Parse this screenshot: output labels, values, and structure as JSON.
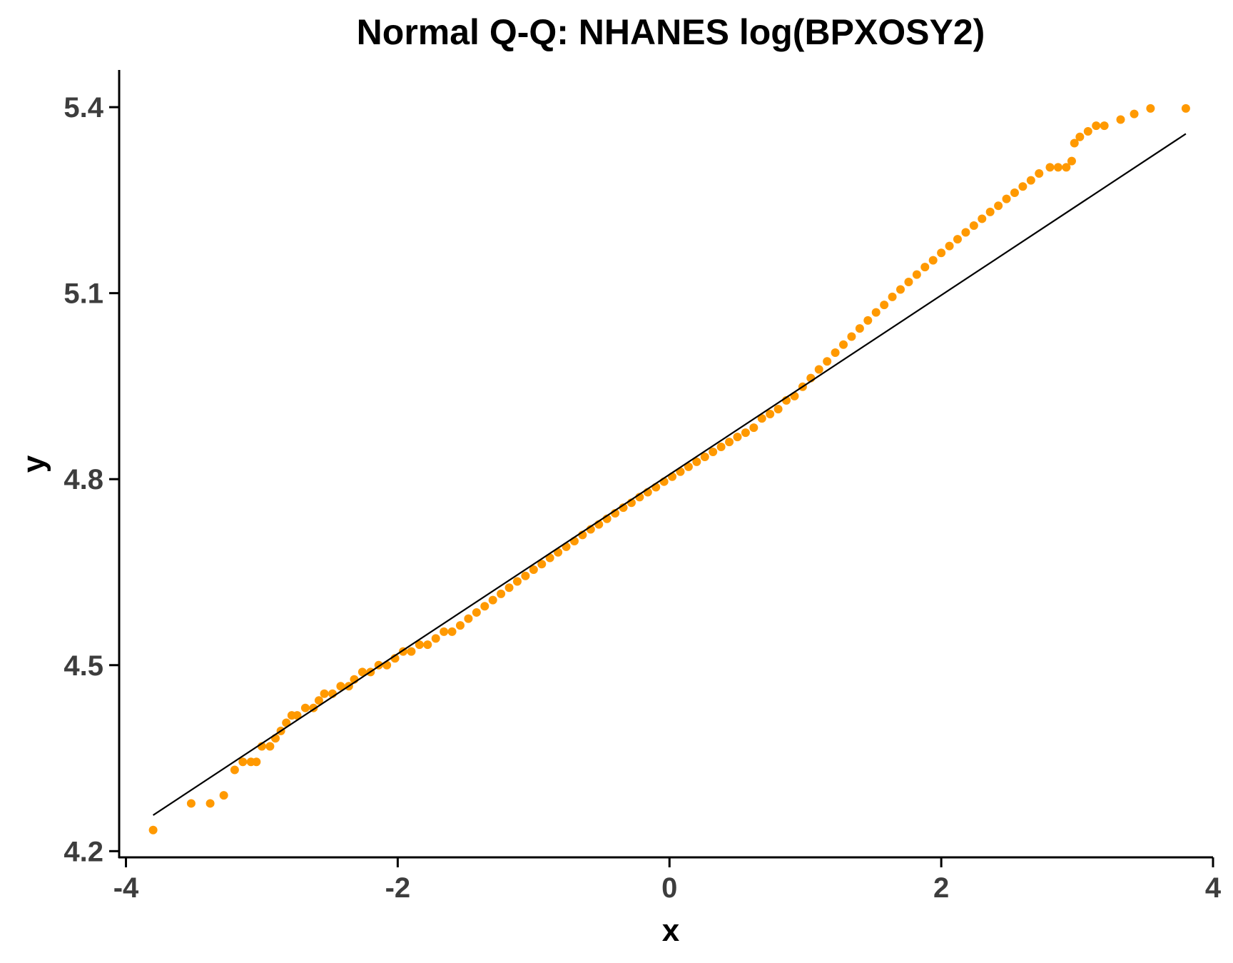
{
  "chart_data": {
    "type": "scatter",
    "title": "Normal Q-Q: NHANES log(BPXOSY2)",
    "xlabel": "x",
    "ylabel": "y",
    "xlim": [
      -4.05,
      4.0
    ],
    "ylim": [
      4.19,
      5.46
    ],
    "x_ticks": [
      -4,
      -2,
      0,
      2,
      4
    ],
    "x_tick_labels": [
      "-4",
      "-2",
      "0",
      "2",
      "4"
    ],
    "y_ticks": [
      4.2,
      4.5,
      4.8,
      5.1,
      5.4
    ],
    "y_tick_labels": [
      "4.2",
      "4.5",
      "4.8",
      "5.1",
      "5.4"
    ],
    "grid": false,
    "point_color": "#ff9900",
    "line_color": "#000000",
    "reference_line": {
      "x": [
        -3.8,
        3.8
      ],
      "y": [
        4.258,
        5.357
      ]
    },
    "series": [
      {
        "points": [
          [
            -3.8,
            4.234
          ],
          [
            -3.52,
            4.277
          ],
          [
            -3.38,
            4.277
          ],
          [
            -3.28,
            4.29
          ],
          [
            -3.2,
            4.331
          ],
          [
            -3.14,
            4.344
          ],
          [
            -3.08,
            4.344
          ],
          [
            -3.04,
            4.344
          ],
          [
            -3.0,
            4.369
          ],
          [
            -2.94,
            4.369
          ],
          [
            -2.9,
            4.382
          ],
          [
            -2.86,
            4.394
          ],
          [
            -2.82,
            4.407
          ],
          [
            -2.78,
            4.419
          ],
          [
            -2.74,
            4.419
          ],
          [
            -2.68,
            4.431
          ],
          [
            -2.62,
            4.431
          ],
          [
            -2.58,
            4.443
          ],
          [
            -2.54,
            4.454
          ],
          [
            -2.48,
            4.454
          ],
          [
            -2.42,
            4.466
          ],
          [
            -2.36,
            4.466
          ],
          [
            -2.32,
            4.477
          ],
          [
            -2.26,
            4.489
          ],
          [
            -2.2,
            4.489
          ],
          [
            -2.14,
            4.5
          ],
          [
            -2.08,
            4.5
          ],
          [
            -2.02,
            4.511
          ],
          [
            -1.96,
            4.522
          ],
          [
            -1.9,
            4.522
          ],
          [
            -1.84,
            4.533
          ],
          [
            -1.78,
            4.533
          ],
          [
            -1.72,
            4.543
          ],
          [
            -1.66,
            4.554
          ],
          [
            -1.6,
            4.554
          ],
          [
            -1.54,
            4.564
          ],
          [
            -1.48,
            4.575
          ],
          [
            -1.42,
            4.585
          ],
          [
            -1.36,
            4.595
          ],
          [
            -1.3,
            4.605
          ],
          [
            -1.24,
            4.615
          ],
          [
            -1.18,
            4.625
          ],
          [
            -1.12,
            4.635
          ],
          [
            -1.06,
            4.644
          ],
          [
            -1.0,
            4.654
          ],
          [
            -0.94,
            4.663
          ],
          [
            -0.88,
            4.673
          ],
          [
            -0.82,
            4.682
          ],
          [
            -0.76,
            4.691
          ],
          [
            -0.7,
            4.7
          ],
          [
            -0.64,
            4.71
          ],
          [
            -0.58,
            4.719
          ],
          [
            -0.52,
            4.727
          ],
          [
            -0.46,
            4.736
          ],
          [
            -0.4,
            4.745
          ],
          [
            -0.34,
            4.754
          ],
          [
            -0.28,
            4.762
          ],
          [
            -0.22,
            4.771
          ],
          [
            -0.16,
            4.779
          ],
          [
            -0.1,
            4.787
          ],
          [
            -0.04,
            4.796
          ],
          [
            0.02,
            4.804
          ],
          [
            0.08,
            4.812
          ],
          [
            0.14,
            4.82
          ],
          [
            0.2,
            4.828
          ],
          [
            0.26,
            4.836
          ],
          [
            0.32,
            4.844
          ],
          [
            0.38,
            4.852
          ],
          [
            0.44,
            4.86
          ],
          [
            0.5,
            4.868
          ],
          [
            0.56,
            4.875
          ],
          [
            0.62,
            4.883
          ],
          [
            0.68,
            4.898
          ],
          [
            0.74,
            4.905
          ],
          [
            0.8,
            4.913
          ],
          [
            0.86,
            4.927
          ],
          [
            0.92,
            4.934
          ],
          [
            0.98,
            4.949
          ],
          [
            1.04,
            4.963
          ],
          [
            1.1,
            4.977
          ],
          [
            1.16,
            4.99
          ],
          [
            1.22,
            5.004
          ],
          [
            1.28,
            5.017
          ],
          [
            1.34,
            5.03
          ],
          [
            1.4,
            5.043
          ],
          [
            1.46,
            5.056
          ],
          [
            1.52,
            5.069
          ],
          [
            1.58,
            5.081
          ],
          [
            1.64,
            5.094
          ],
          [
            1.7,
            5.106
          ],
          [
            1.76,
            5.118
          ],
          [
            1.82,
            5.13
          ],
          [
            1.88,
            5.142
          ],
          [
            1.94,
            5.153
          ],
          [
            2.0,
            5.165
          ],
          [
            2.06,
            5.176
          ],
          [
            2.12,
            5.187
          ],
          [
            2.18,
            5.198
          ],
          [
            2.24,
            5.209
          ],
          [
            2.3,
            5.22
          ],
          [
            2.36,
            5.231
          ],
          [
            2.42,
            5.241
          ],
          [
            2.48,
            5.252
          ],
          [
            2.54,
            5.262
          ],
          [
            2.6,
            5.272
          ],
          [
            2.66,
            5.282
          ],
          [
            2.72,
            5.293
          ],
          [
            2.8,
            5.303
          ],
          [
            2.86,
            5.303
          ],
          [
            2.92,
            5.303
          ],
          [
            2.96,
            5.313
          ],
          [
            2.98,
            5.342
          ],
          [
            3.02,
            5.352
          ],
          [
            3.08,
            5.361
          ],
          [
            3.14,
            5.37
          ],
          [
            3.2,
            5.37
          ],
          [
            3.32,
            5.38
          ],
          [
            3.42,
            5.389
          ],
          [
            3.54,
            5.398
          ],
          [
            3.8,
            5.398
          ]
        ]
      }
    ]
  }
}
